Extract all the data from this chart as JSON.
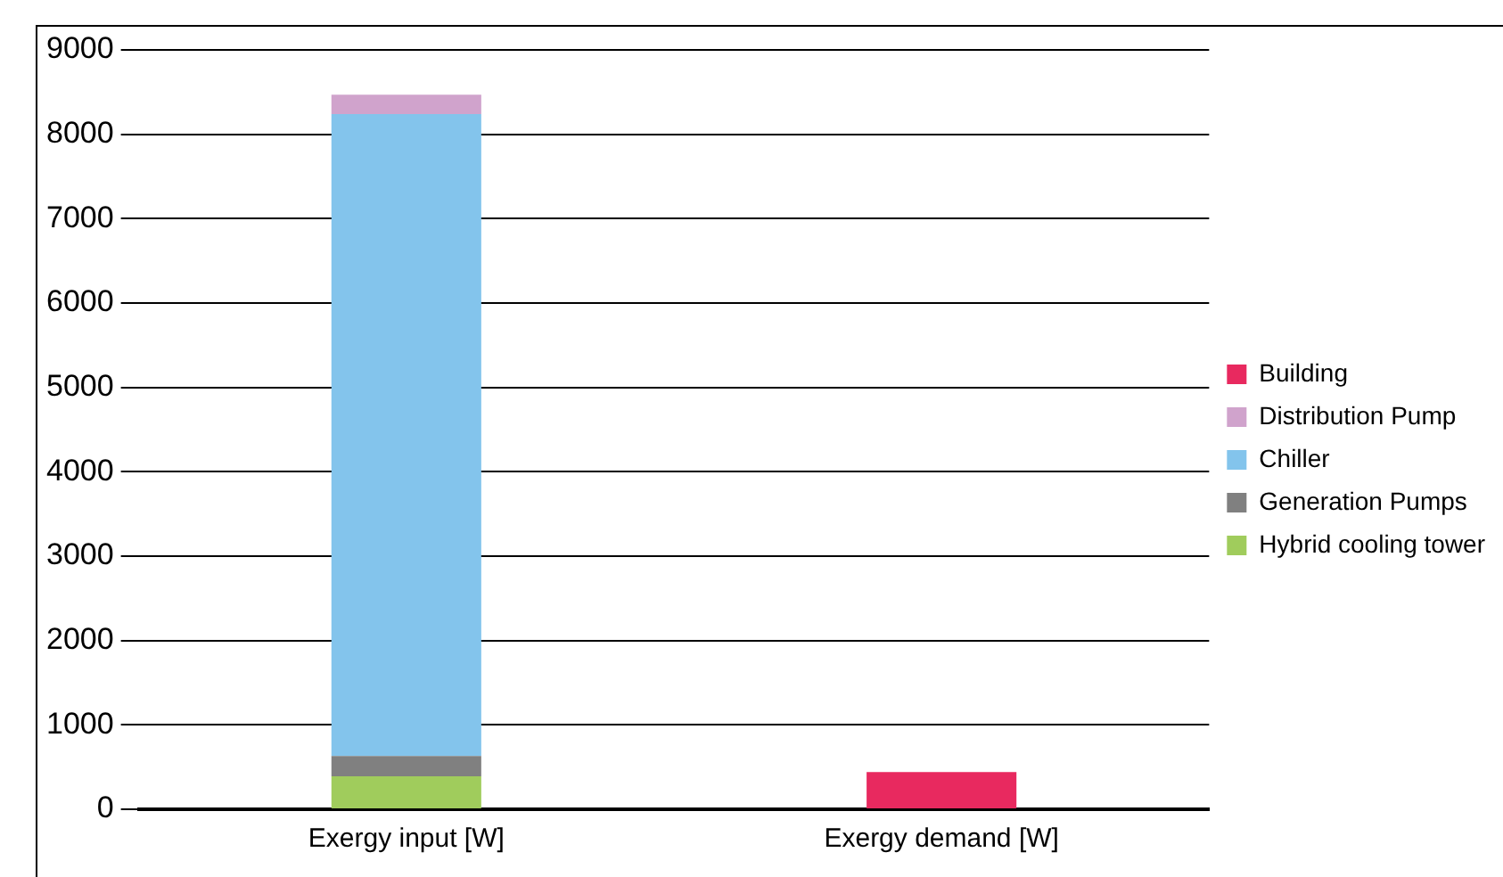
{
  "chart_data": {
    "type": "bar",
    "stacked": true,
    "categories": [
      "Exergy input [W]",
      "Exergy demand [W]"
    ],
    "series": [
      {
        "name": "Hybrid cooling tower",
        "color": "#a0cc5c",
        "values": [
          390,
          null
        ]
      },
      {
        "name": "Generation Pumps",
        "color": "#808080",
        "values": [
          240,
          null
        ]
      },
      {
        "name": "Chiller",
        "color": "#83c4ec",
        "values": [
          7610,
          null
        ]
      },
      {
        "name": "Distribution Pump",
        "color": "#d0a3cc",
        "values": [
          230,
          null
        ]
      },
      {
        "name": "Building",
        "color": "#e8295f",
        "values": [
          null,
          440
        ]
      }
    ],
    "ylim": [
      0,
      9000
    ],
    "yticks": [
      0,
      1000,
      2000,
      3000,
      4000,
      5000,
      6000,
      7000,
      8000,
      9000
    ],
    "grid": "y",
    "legend": "right"
  }
}
